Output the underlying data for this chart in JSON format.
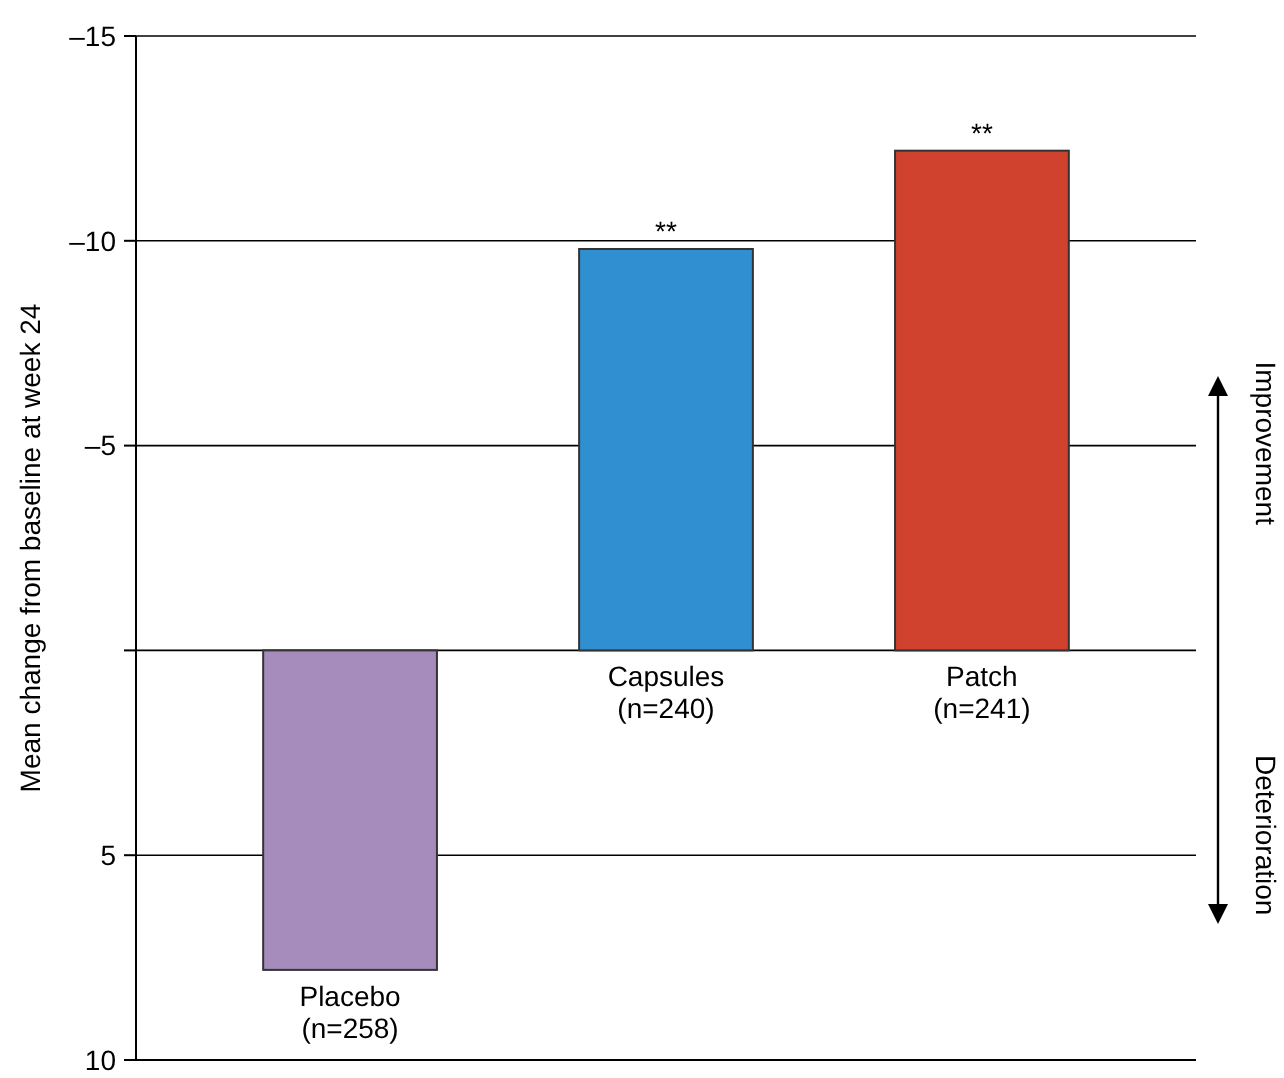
{
  "chart_data": {
    "type": "bar",
    "ylabel": "Mean change from baseline at week 24",
    "categories": [
      "Placebo\n(n=258)",
      "Capsules\n(n=240)",
      "Patch\n(n=241)"
    ],
    "values": [
      7.8,
      -9.8,
      -12.2
    ],
    "colors": [
      "#a58cbd",
      "#2f8fd0",
      "#d0412e"
    ],
    "ylim": [
      10,
      -15
    ],
    "yticks": [
      {
        "value": -15,
        "label": "–15"
      },
      {
        "value": -10,
        "label": "–10"
      },
      {
        "value": -5,
        "label": "–5"
      },
      {
        "value": 0,
        "label": null
      },
      5,
      10
    ],
    "grid": "y",
    "annotations": [
      {
        "text": "**",
        "x": "Capsules\n(n=240)",
        "y": -9.8
      },
      {
        "text": "**",
        "x": "Patch\n(n=241)",
        "y": -12.2
      },
      "Improvement",
      "Deterioration"
    ]
  }
}
